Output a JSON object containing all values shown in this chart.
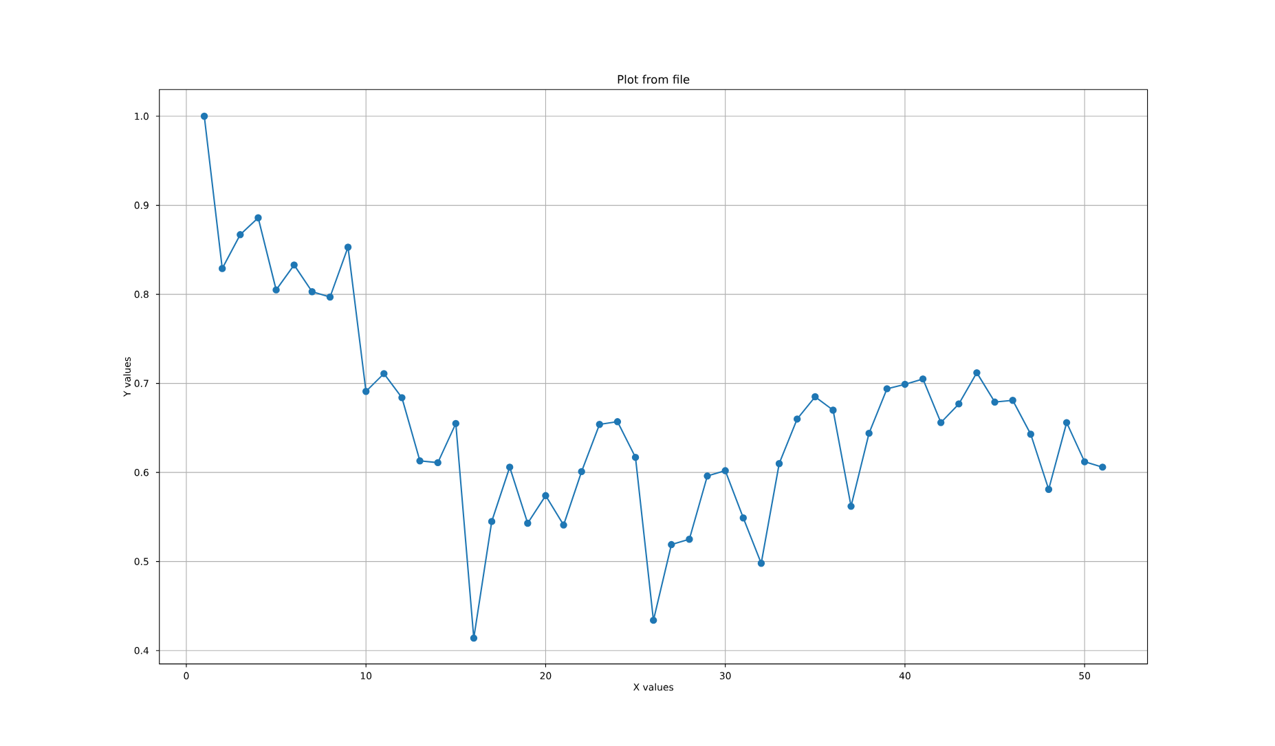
{
  "chart_data": {
    "type": "line",
    "title": "Plot from file",
    "xlabel": "X values",
    "ylabel": "Y values",
    "x": [
      1,
      2,
      3,
      4,
      5,
      6,
      7,
      8,
      9,
      10,
      11,
      12,
      13,
      14,
      15,
      16,
      17,
      18,
      19,
      20,
      21,
      22,
      23,
      24,
      25,
      26,
      27,
      28,
      29,
      30,
      31,
      32,
      33,
      34,
      35,
      36,
      37,
      38,
      39,
      40,
      41,
      42,
      43,
      44,
      45,
      46,
      47,
      48,
      49,
      50,
      51
    ],
    "series": [
      {
        "color": "#1f77b4",
        "values": [
          1.0,
          0.829,
          0.867,
          0.886,
          0.805,
          0.833,
          0.803,
          0.797,
          0.853,
          0.691,
          0.711,
          0.684,
          0.613,
          0.611,
          0.655,
          0.414,
          0.545,
          0.606,
          0.543,
          0.574,
          0.541,
          0.601,
          0.654,
          0.657,
          0.617,
          0.434,
          0.519,
          0.525,
          0.596,
          0.602,
          0.549,
          0.498,
          0.61,
          0.66,
          0.685,
          0.67,
          0.562,
          0.644,
          0.694,
          0.699,
          0.705,
          0.656,
          0.677,
          0.712,
          0.679,
          0.681,
          0.643,
          0.581,
          0.656,
          0.612,
          0.606
        ]
      }
    ],
    "xlim": [
      -1.5,
      53.5
    ],
    "ylim": [
      0.385,
      1.03
    ],
    "xticks": [
      0,
      10,
      20,
      30,
      40,
      50
    ],
    "yticks": [
      0.4,
      0.5,
      0.6,
      0.7,
      0.8,
      0.9,
      {
        "value": 1,
        "label": "1.0"
      }
    ],
    "grid": true,
    "marker": "circle",
    "line_style": "solid"
  }
}
